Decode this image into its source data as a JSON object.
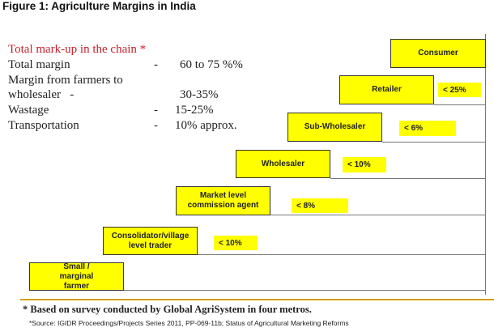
{
  "title": "Figure 1: Agriculture Margins in India",
  "summary": {
    "heading": "Total mark-up in the chain *",
    "rows": [
      {
        "label": "Total margin",
        "dash": "-",
        "value": "60 to 75 %%"
      },
      {
        "label": "Margin from farmers to",
        "dash": "",
        "value": ""
      },
      {
        "label": "wholesaler   -",
        "dash": "",
        "value": "30-35%"
      },
      {
        "label": "Wastage",
        "dash": "-",
        "value": "15-25%"
      },
      {
        "label": "Transportation",
        "dash": "-",
        "value": "10% approx."
      }
    ]
  },
  "chain": [
    {
      "label": "Consumer",
      "margin": ""
    },
    {
      "label": "Retailer",
      "margin": "< 25%"
    },
    {
      "label": "Sub-Wholesaler",
      "margin": "< 6%"
    },
    {
      "label": "Wholesaler",
      "margin": "< 10%"
    },
    {
      "label": "Market level commission agent",
      "margin": "< 8%"
    },
    {
      "label": "Consolidator/village level trader",
      "margin": "< 10%"
    },
    {
      "label": "Small / marginal farmer",
      "margin": ""
    }
  ],
  "footnote": "* Based on survey conducted  by Global AgriSystem  in four metros.",
  "source": "*Source: IGIDR Proceedings/Projects Series 2011, PP-069-11b;  Status of Agricultural Marketing Reforms",
  "colors": {
    "box": "#ffff00",
    "heading": "#c8202a",
    "rule": "#d4a017"
  }
}
